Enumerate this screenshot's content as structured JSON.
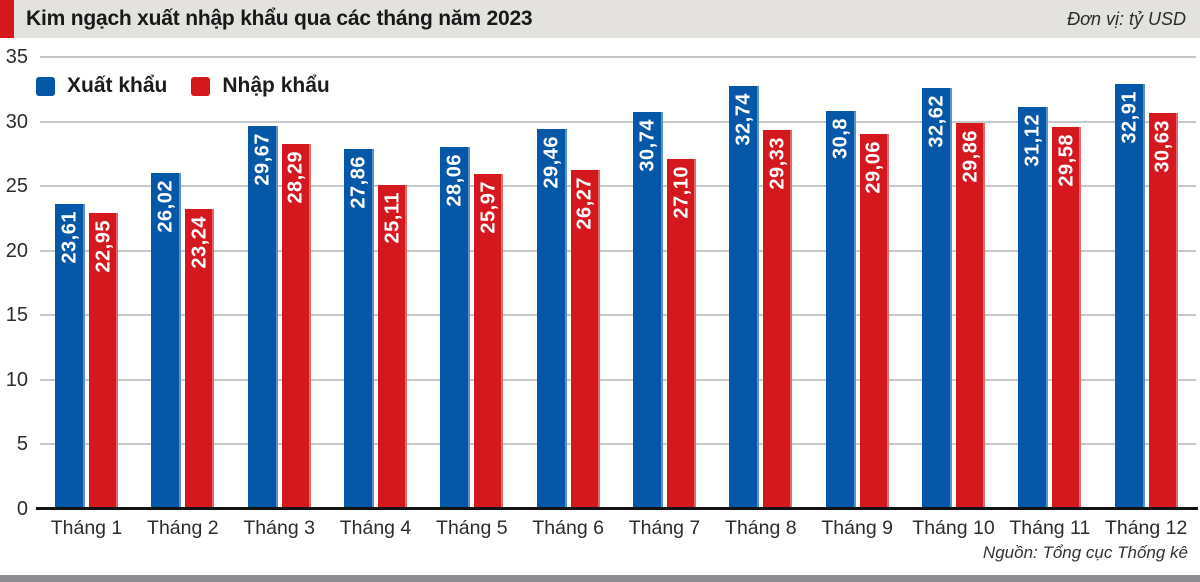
{
  "header": {
    "title": "Kim ngạch xuất nhập khẩu qua các tháng năm 2023",
    "unit_label": "Đơn vị: tỷ USD"
  },
  "source_note": "Nguồn: Tổng cục Thống kê",
  "colors": {
    "export_blue": "#0557a7",
    "import_red": "#d5171e",
    "header_bg": "#e4e2de",
    "accent_red": "#d5171e",
    "gridline_gray": "#c6c9cb",
    "footer_bar_gray": "#8d8d8f"
  },
  "chart_data": {
    "type": "bar",
    "title": "Kim ngạch xuất nhập khẩu qua các tháng năm 2023",
    "unit": "tỷ USD",
    "categories": [
      "Tháng 1",
      "Tháng 2",
      "Tháng 3",
      "Tháng 4",
      "Tháng 5",
      "Tháng 6",
      "Tháng 7",
      "Tháng 8",
      "Tháng 9",
      "Tháng 10",
      "Tháng 11",
      "Tháng 12"
    ],
    "series": [
      {
        "name": "Xuất khẩu",
        "color": "#0557a7",
        "values": [
          23.61,
          26.02,
          29.67,
          27.86,
          28.06,
          29.46,
          30.74,
          32.74,
          30.8,
          32.62,
          31.12,
          32.91
        ],
        "labels": [
          "23,61",
          "26,02",
          "29,67",
          "27,86",
          "28,06",
          "29,46",
          "30,74",
          "32,74",
          "30,8",
          "32,62",
          "31,12",
          "32,91"
        ]
      },
      {
        "name": "Nhập khẩu",
        "color": "#d5171e",
        "values": [
          22.95,
          23.24,
          28.29,
          25.11,
          25.97,
          26.27,
          27.1,
          29.33,
          29.06,
          29.86,
          29.58,
          30.63
        ],
        "labels": [
          "22,95",
          "23,24",
          "28,29",
          "25,11",
          "25,97",
          "26,27",
          "27,10",
          "29,33",
          "29,06",
          "29,86",
          "29,58",
          "30,63"
        ]
      }
    ],
    "ylim": [
      0,
      35
    ],
    "yticks": [
      0,
      5,
      10,
      15,
      20,
      25,
      30,
      35
    ],
    "grid": true,
    "legend_position": "top-left"
  }
}
